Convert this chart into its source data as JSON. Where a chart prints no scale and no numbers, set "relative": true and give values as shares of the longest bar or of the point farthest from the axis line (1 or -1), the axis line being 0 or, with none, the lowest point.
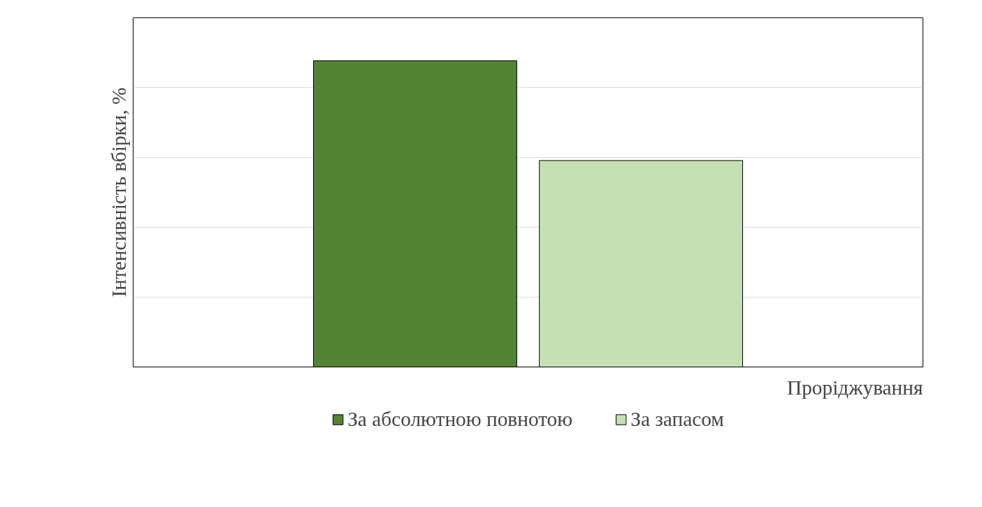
{
  "chart_data": {
    "type": "bar",
    "relative": true,
    "categories": [
      null
    ],
    "xlabel": "Проріджування",
    "ylabel": "Інтенсивність вбірки, %",
    "grid": "y",
    "legend": "bottom",
    "series": [
      {
        "name": "За абсолютною повнотою",
        "color": "#548235",
        "values": [
          1
        ]
      },
      {
        "name": "За запасом",
        "color": "#c5e0b4",
        "values": [
          0.674
        ]
      }
    ]
  }
}
